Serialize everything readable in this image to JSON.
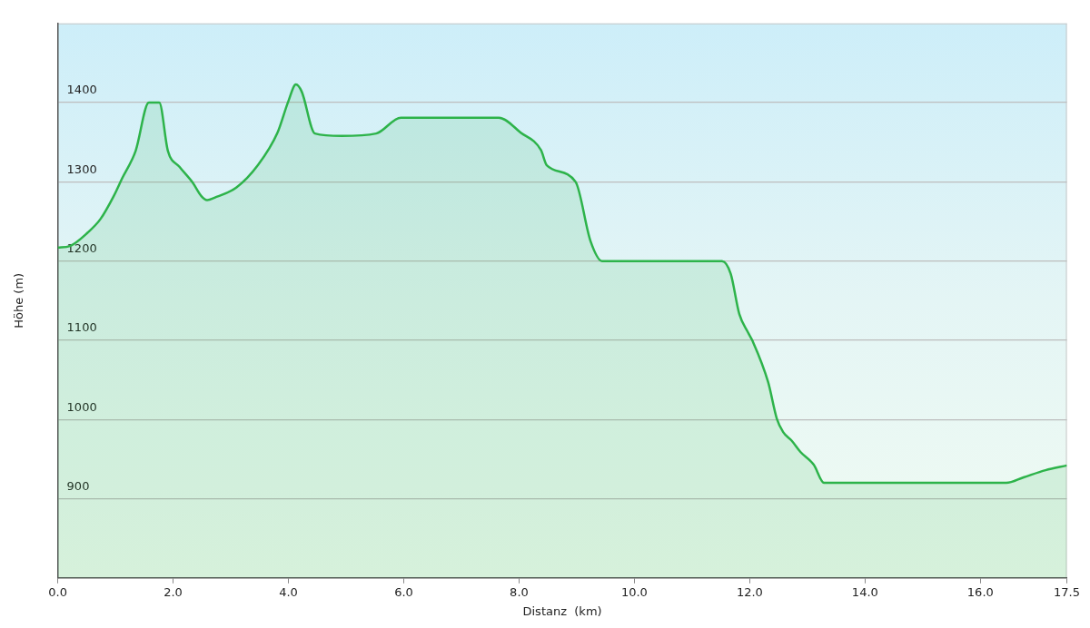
{
  "chart_data": {
    "type": "area",
    "xlabel": "Distanz  (km)",
    "ylabel": "Höhe (m)",
    "x": [
      0,
      0.21,
      0.52,
      0.74,
      0.97,
      1.12,
      1.35,
      1.58,
      1.76,
      1.91,
      2.11,
      2.34,
      2.49,
      2.59,
      2.72,
      3.1,
      3.47,
      3.81,
      4.0,
      4.13,
      4.23,
      4.46,
      4.92,
      5.52,
      5.95,
      7.65,
      8.03,
      8.38,
      8.48,
      8.98,
      9.24,
      9.44,
      11.52,
      11.67,
      11.82,
      11.97,
      12.05,
      12.32,
      12.47,
      12.58,
      12.73,
      12.88,
      13.11,
      13.29,
      16.45,
      16.75,
      17.13,
      17.5
    ],
    "series": [
      {
        "color": "#2db34a",
        "values": [
          1217,
          1219,
          1236,
          1253,
          1282,
          1305,
          1339,
          1400,
          1400,
          1339,
          1319,
          1299,
          1282,
          1277,
          1280,
          1293,
          1321,
          1362,
          1402,
          1423,
          1414,
          1361,
          1358,
          1361,
          1381,
          1381,
          1362,
          1340,
          1321,
          1300,
          1225,
          1200,
          1200,
          1184,
          1133,
          1110,
          1099,
          1047,
          1001,
          984,
          973,
          959,
          943,
          920,
          920,
          927,
          936,
          942
        ]
      }
    ],
    "xlim": [
      0,
      17.5
    ],
    "xticks": [
      {
        "value": 0,
        "label": "0.0"
      },
      {
        "value": 2,
        "label": "2.0"
      },
      {
        "value": 4,
        "label": "4.0"
      },
      {
        "value": 6,
        "label": "6.0"
      },
      {
        "value": 8,
        "label": "8.0"
      },
      {
        "value": 10,
        "label": "10.0"
      },
      {
        "value": 12,
        "label": "12.0"
      },
      {
        "value": 14,
        "label": "14.0"
      },
      {
        "value": 16,
        "label": "16.0"
      },
      17.5
    ],
    "ylim": [
      800,
      1500
    ],
    "yticks": [
      900,
      1000,
      1100,
      1200,
      1300,
      1400
    ],
    "grid": "y",
    "legend": false,
    "marker": "none",
    "line_style": "solid"
  }
}
